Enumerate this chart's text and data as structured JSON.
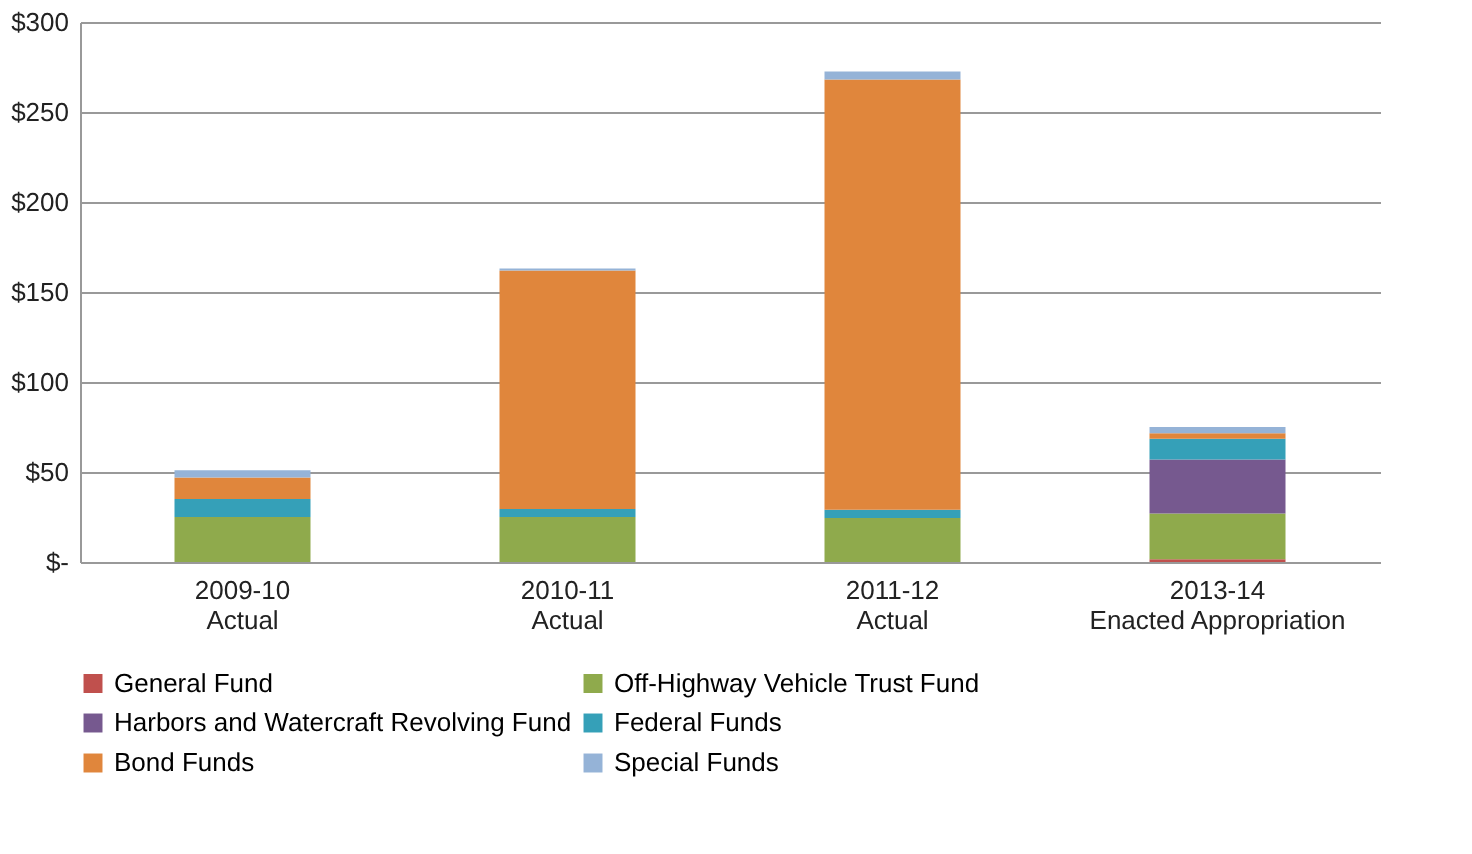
{
  "chart_data": {
    "type": "bar",
    "stacked": true,
    "categories": [
      "2009-10\nActual",
      "2010-11\nActual",
      "2011-12\nActual",
      "2013-14\nEnacted Appropriation"
    ],
    "series": [
      {
        "name": "General Fund",
        "color": "#c0504d",
        "values": [
          0,
          0,
          0,
          1.5
        ]
      },
      {
        "name": "Off-Highway Vehicle Trust Fund",
        "color": "#8faa4c",
        "values": [
          25,
          25,
          24.5,
          25.5
        ]
      },
      {
        "name": "Harbors and Watercraft Revolving Fund",
        "color": "#76598f",
        "values": [
          0,
          0,
          0,
          30
        ]
      },
      {
        "name": "Federal Funds",
        "color": "#35a0b8",
        "values": [
          10,
          4.5,
          4.5,
          11.5
        ]
      },
      {
        "name": "Bond Funds",
        "color": "#e0863c",
        "values": [
          12,
          132.5,
          239,
          3
        ]
      },
      {
        "name": "Special Funds",
        "color": "#95b3d7",
        "values": [
          4,
          1,
          4.5,
          3.5
        ]
      }
    ],
    "ylim": [
      0,
      300
    ],
    "yticks": [
      {
        "value": 0,
        "label": "$-"
      },
      {
        "value": 50,
        "label": "$50"
      },
      {
        "value": 100,
        "label": "$100"
      },
      {
        "value": 150,
        "label": "$150"
      },
      {
        "value": 200,
        "label": "$200"
      },
      {
        "value": 250,
        "label": "$250"
      },
      {
        "value": 300,
        "label": "$300"
      }
    ],
    "grid": "y",
    "legend": "bottom"
  }
}
